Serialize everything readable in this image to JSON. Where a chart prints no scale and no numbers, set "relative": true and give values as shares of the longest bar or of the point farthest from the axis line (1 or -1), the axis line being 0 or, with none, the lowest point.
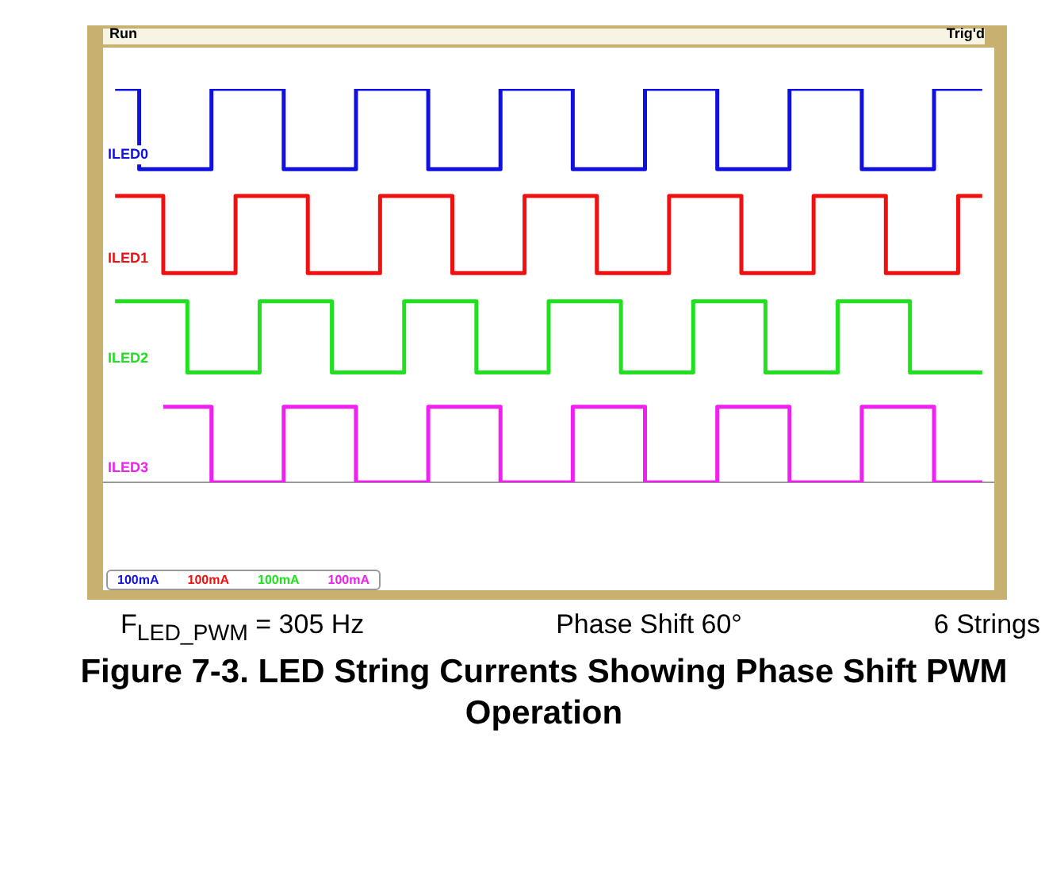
{
  "chart_data": {
    "type": "step",
    "relative": true,
    "title": "Figure 7-3. LED String Currents Showing Phase Shift PWM Operation",
    "legend": false,
    "grid": false,
    "categories": [
      null,
      null,
      null,
      null,
      null,
      null,
      null,
      null,
      null,
      null,
      null,
      null,
      null,
      null,
      null,
      null,
      null,
      null,
      null,
      null,
      null,
      null,
      null,
      null,
      null,
      null,
      null,
      null,
      null,
      null,
      null,
      null,
      null,
      null,
      null,
      null,
      null
    ],
    "series": [
      {
        "name": "ILED0",
        "color": "#1010e0",
        "values": [
          1,
          1,
          0.796,
          0.796,
          0.796,
          1,
          1,
          1,
          0.796,
          0.796,
          0.796,
          1,
          1,
          1,
          0.796,
          0.796,
          0.796,
          1,
          1,
          1,
          0.796,
          0.796,
          0.796,
          1,
          1,
          1,
          0.796,
          0.796,
          0.796,
          1,
          1,
          1,
          0.796,
          0.796,
          0.796,
          1,
          1
        ]
      },
      {
        "name": "ILED1",
        "color": "#f01010",
        "values": [
          0.728,
          0.728,
          0.728,
          0.532,
          0.532,
          0.532,
          0.728,
          0.728,
          0.728,
          0.532,
          0.532,
          0.532,
          0.728,
          0.728,
          0.728,
          0.532,
          0.532,
          0.532,
          0.728,
          0.728,
          0.728,
          0.532,
          0.532,
          0.532,
          0.728,
          0.728,
          0.728,
          0.532,
          0.532,
          0.532,
          0.728,
          0.728,
          0.728,
          0.532,
          0.532,
          0.532,
          0.728
        ]
      },
      {
        "name": "ILED2",
        "color": "#20e020",
        "values": [
          0.46,
          0.46,
          0.46,
          0.46,
          0.279,
          0.279,
          0.279,
          0.46,
          0.46,
          0.46,
          0.279,
          0.279,
          0.279,
          0.46,
          0.46,
          0.46,
          0.279,
          0.279,
          0.279,
          0.46,
          0.46,
          0.46,
          0.279,
          0.279,
          0.279,
          0.46,
          0.46,
          0.46,
          0.279,
          0.279,
          0.279,
          0.46,
          0.46,
          0.46,
          0.279,
          0.279,
          0.279
        ]
      },
      {
        "name": "ILED3",
        "color": "#f020f0",
        "values": [
          null,
          null,
          0.192,
          0.192,
          0.192,
          0,
          0,
          0,
          0.192,
          0.192,
          0.192,
          0,
          0,
          0,
          0.192,
          0.192,
          0.192,
          0,
          0,
          0,
          0.192,
          0.192,
          0.192,
          0,
          0,
          0,
          0.192,
          0.192,
          0.192,
          0,
          0,
          0,
          0.192,
          0.192,
          0.192,
          0,
          0
        ]
      }
    ],
    "annotations": [
      "Run",
      "Trig'd",
      "100mA",
      "100mA",
      "100mA",
      "100mA",
      "F$_{LED_PWM}$ = 305 Hz",
      "Phase Shift 60°",
      "6 Strings"
    ]
  }
}
